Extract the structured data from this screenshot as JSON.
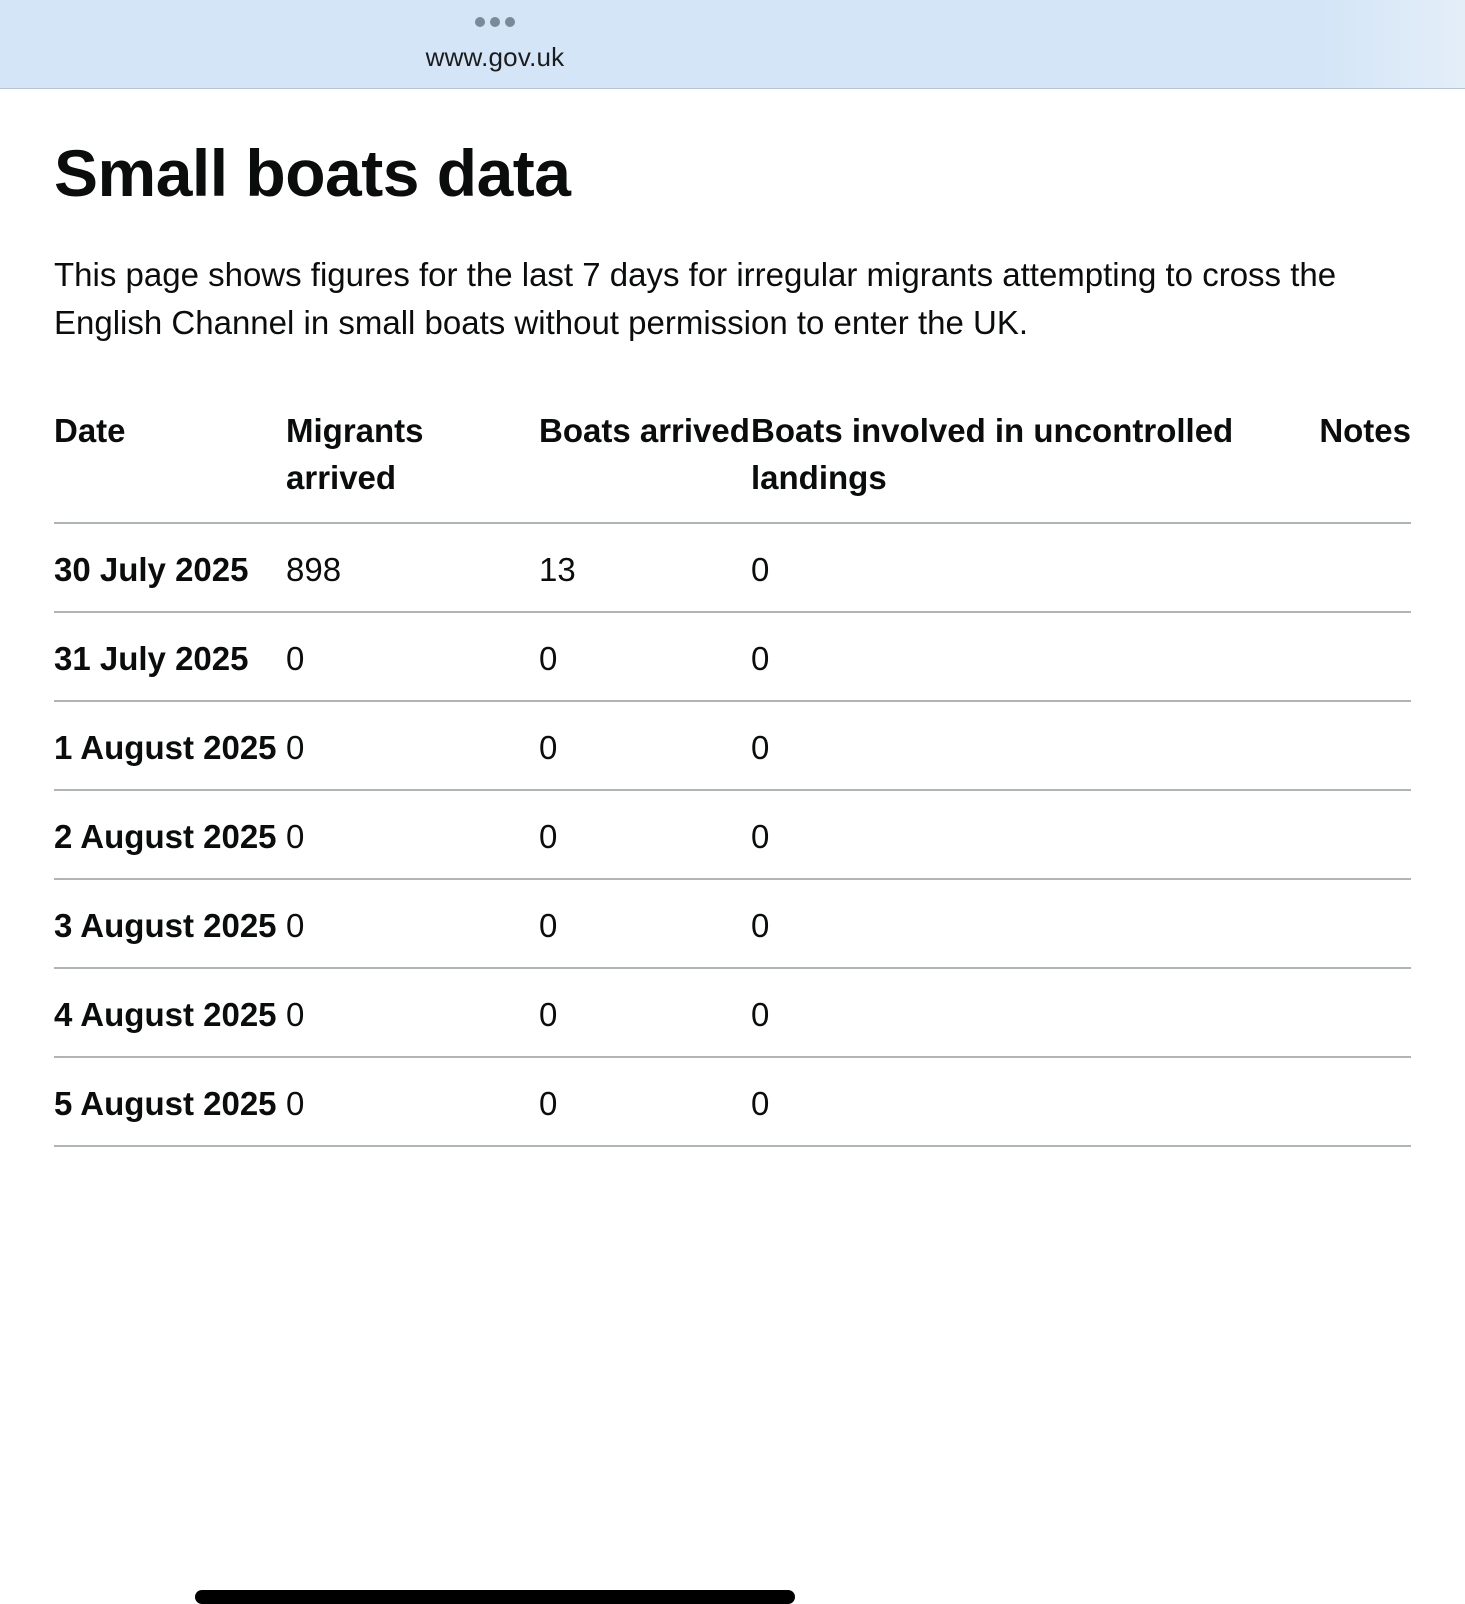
{
  "browser": {
    "url": "www.gov.uk"
  },
  "page": {
    "title": "Small boats data",
    "lead": "This page shows figures for the last 7 days for irregular migrants attempting to cross the English Channel in small boats without permission to enter the UK."
  },
  "table": {
    "headers": {
      "date": "Date",
      "migrants": "Migrants arrived",
      "boats": "Boats arrived",
      "uncontrolled": "Boats involved in uncontrolled landings",
      "notes": "Notes"
    },
    "rows": [
      {
        "date": "30 July 2025",
        "migrants": "898",
        "boats": "13",
        "uncontrolled": "0",
        "notes": ""
      },
      {
        "date": "31 July 2025",
        "migrants": "0",
        "boats": "0",
        "uncontrolled": "0",
        "notes": ""
      },
      {
        "date": "1 August 2025",
        "migrants": "0",
        "boats": "0",
        "uncontrolled": "0",
        "notes": ""
      },
      {
        "date": "2 August 2025",
        "migrants": "0",
        "boats": "0",
        "uncontrolled": "0",
        "notes": ""
      },
      {
        "date": "3 August 2025",
        "migrants": "0",
        "boats": "0",
        "uncontrolled": "0",
        "notes": ""
      },
      {
        "date": "4 August 2025",
        "migrants": "0",
        "boats": "0",
        "uncontrolled": "0",
        "notes": ""
      },
      {
        "date": "5 August 2025",
        "migrants": "0",
        "boats": "0",
        "uncontrolled": "0",
        "notes": ""
      }
    ]
  }
}
